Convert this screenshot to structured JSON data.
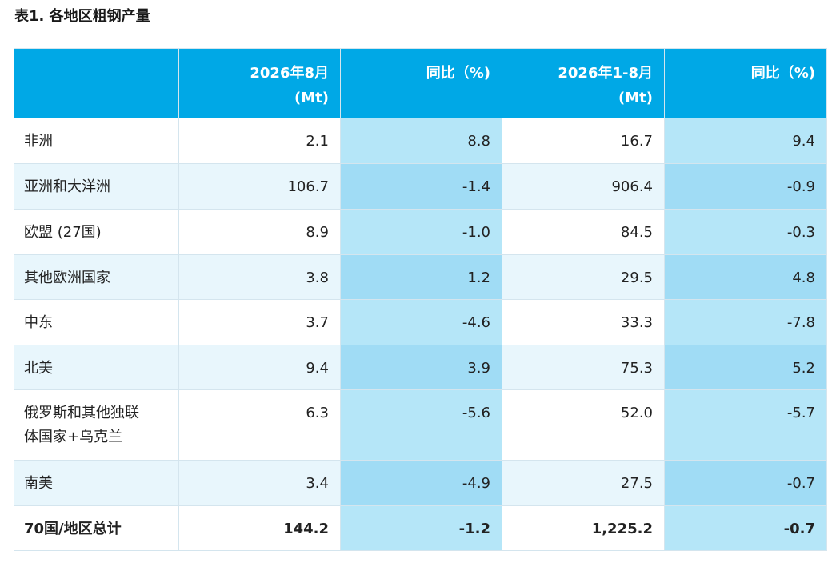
{
  "caption": "表1. 各地区粗钢产量",
  "colors": {
    "header_bg": "#00a8e6",
    "header_text": "#ffffff",
    "highlight_col": "#b5e6f8",
    "highlight_col_tint": "#a0dcf5",
    "row_tint": "#e8f6fc"
  },
  "table": {
    "headers": [
      {
        "line1": "",
        "line2": ""
      },
      {
        "line1": "2026年8月",
        "line2": "(Mt)"
      },
      {
        "line1": "同比（%)",
        "line2": ""
      },
      {
        "line1": "2026年1-8月",
        "line2": "(Mt)"
      },
      {
        "line1": "同比（%)",
        "line2": ""
      }
    ],
    "rows": [
      {
        "region_1": "非洲",
        "region_2": "",
        "aug": "2.1",
        "aug_yoy": "8.8",
        "ytd": "16.7",
        "ytd_yoy": "9.4"
      },
      {
        "region_1": "亚洲和大洋洲",
        "region_2": "",
        "aug": "106.7",
        "aug_yoy": "-1.4",
        "ytd": "906.4",
        "ytd_yoy": "-0.9"
      },
      {
        "region_1": "欧盟 (27国)",
        "region_2": "",
        "aug": "8.9",
        "aug_yoy": "-1.0",
        "ytd": "84.5",
        "ytd_yoy": "-0.3"
      },
      {
        "region_1": "其他欧洲国家",
        "region_2": "",
        "aug": "3.8",
        "aug_yoy": "1.2",
        "ytd": "29.5",
        "ytd_yoy": "4.8"
      },
      {
        "region_1": "中东",
        "region_2": "",
        "aug": "3.7",
        "aug_yoy": "-4.6",
        "ytd": "33.3",
        "ytd_yoy": "-7.8"
      },
      {
        "region_1": "北美",
        "region_2": "",
        "aug": "9.4",
        "aug_yoy": "3.9",
        "ytd": "75.3",
        "ytd_yoy": "5.2"
      },
      {
        "region_1": "俄罗斯和其他独联",
        "region_2": "体国家+乌克兰",
        "aug": "6.3",
        "aug_yoy": "-5.6",
        "ytd": "52.0",
        "ytd_yoy": "-5.7"
      },
      {
        "region_1": "南美",
        "region_2": "",
        "aug": "3.4",
        "aug_yoy": "-4.9",
        "ytd": "27.5",
        "ytd_yoy": "-0.7"
      },
      {
        "region_1": "70国/地区总计",
        "region_2": "",
        "aug": "144.2",
        "aug_yoy": "-1.2",
        "ytd": "1,225.2",
        "ytd_yoy": "-0.7"
      }
    ]
  }
}
